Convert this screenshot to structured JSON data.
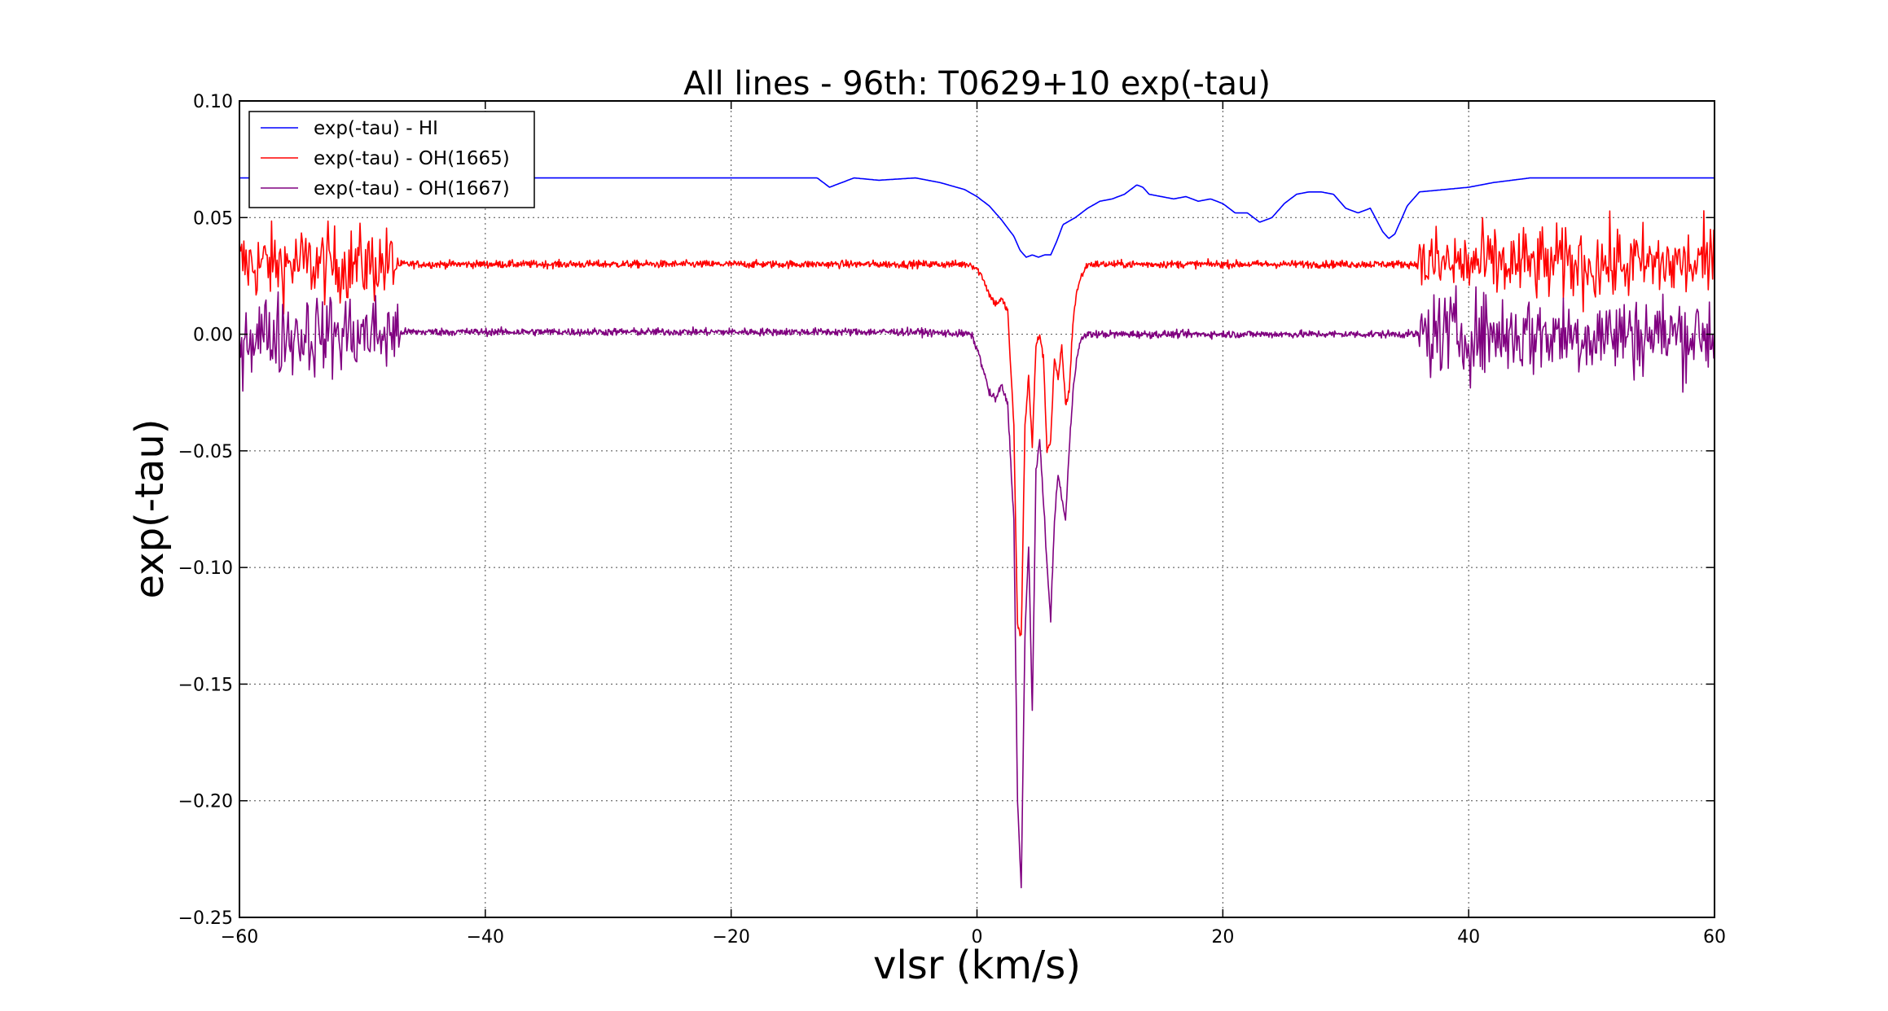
{
  "chart_data": {
    "type": "line",
    "title": "All lines - 96th: T0629+10  exp(-tau)",
    "xlabel": "vlsr (km/s)",
    "ylabel": "exp(-tau)",
    "xlim": [
      -60,
      60
    ],
    "ylim": [
      -0.25,
      0.1
    ],
    "grid": true,
    "legend_position": "top-left",
    "xticks": [
      -60,
      -40,
      -20,
      0,
      20,
      40,
      60
    ],
    "xtick_labels": [
      "−60",
      "−40",
      "−20",
      "0",
      "20",
      "40",
      "60"
    ],
    "yticks": [
      0.1,
      0.05,
      0.0,
      -0.05,
      -0.1,
      -0.15,
      -0.2,
      -0.25
    ],
    "ytick_labels": [
      "0.10",
      "0.05",
      "0.00",
      "−0.05",
      "−0.10",
      "−0.15",
      "−0.20",
      "−0.25"
    ],
    "series": [
      {
        "name": "exp(-tau) - HI",
        "color": "#0000ff",
        "noise_regions": [],
        "x": [
          -60,
          -14,
          -13,
          -12,
          -11,
          -10,
          -8,
          -5,
          -3,
          -1,
          0,
          1,
          2,
          3,
          3.5,
          4,
          4.5,
          5,
          5.5,
          6,
          6.5,
          7,
          8,
          9,
          10,
          11,
          12,
          13,
          13.5,
          14,
          15,
          16,
          17,
          18,
          19,
          20,
          21,
          22,
          23,
          24,
          25,
          26,
          27,
          28,
          29,
          30,
          31,
          32,
          33,
          33.5,
          34,
          35,
          36,
          38,
          40,
          42,
          45,
          50,
          60
        ],
        "y": [
          0.067,
          0.067,
          0.067,
          0.063,
          0.065,
          0.067,
          0.066,
          0.067,
          0.065,
          0.062,
          0.059,
          0.055,
          0.049,
          0.042,
          0.036,
          0.033,
          0.034,
          0.033,
          0.034,
          0.034,
          0.04,
          0.047,
          0.05,
          0.054,
          0.057,
          0.058,
          0.06,
          0.064,
          0.063,
          0.06,
          0.059,
          0.058,
          0.059,
          0.057,
          0.058,
          0.056,
          0.052,
          0.052,
          0.048,
          0.05,
          0.056,
          0.06,
          0.061,
          0.061,
          0.06,
          0.054,
          0.052,
          0.054,
          0.044,
          0.041,
          0.043,
          0.055,
          0.061,
          0.062,
          0.063,
          0.065,
          0.067,
          0.067,
          0.067
        ]
      },
      {
        "name": "exp(-tau) - OH(1665)",
        "color": "#ff0000",
        "noise_regions": [
          [
            -60,
            -47,
            0.03,
            0.018
          ],
          [
            36,
            60,
            0.03,
            0.018
          ]
        ],
        "x": [
          -46.9,
          -20,
          -5,
          -0.5,
          0,
          0.5,
          1,
          1.5,
          2,
          2.5,
          3,
          3.3,
          3.6,
          3.9,
          4.2,
          4.5,
          4.8,
          5.1,
          5.4,
          5.7,
          6.0,
          6.3,
          6.6,
          6.9,
          7.2,
          7.5,
          7.8,
          8.1,
          8.5,
          9,
          10,
          20,
          35.9
        ],
        "y": [
          0.03,
          0.03,
          0.03,
          0.03,
          0.028,
          0.024,
          0.017,
          0.013,
          0.015,
          0.01,
          -0.04,
          -0.125,
          -0.13,
          -0.04,
          -0.018,
          -0.048,
          -0.005,
          0.0,
          -0.01,
          -0.05,
          -0.045,
          -0.01,
          -0.02,
          -0.005,
          -0.03,
          -0.025,
          0.005,
          0.018,
          0.025,
          0.03,
          0.03,
          0.03,
          0.03
        ]
      },
      {
        "name": "exp(-tau) - OH(1667)",
        "color": "#800080",
        "noise_regions": [
          [
            -60,
            -47,
            0.0,
            0.02
          ],
          [
            36,
            60,
            0.0,
            0.02
          ]
        ],
        "x": [
          -46.9,
          -20,
          -5,
          -0.5,
          0,
          0.5,
          1,
          1.5,
          2,
          2.5,
          3,
          3.3,
          3.6,
          3.9,
          4.2,
          4.5,
          4.8,
          5.1,
          5.4,
          5.7,
          6.0,
          6.3,
          6.6,
          6.9,
          7.2,
          7.5,
          7.8,
          8.1,
          8.5,
          9,
          10,
          20,
          35.9
        ],
        "y": [
          0.001,
          0.001,
          0.001,
          0.0,
          -0.006,
          -0.015,
          -0.025,
          -0.028,
          -0.022,
          -0.03,
          -0.08,
          -0.2,
          -0.238,
          -0.13,
          -0.09,
          -0.162,
          -0.06,
          -0.045,
          -0.07,
          -0.1,
          -0.122,
          -0.08,
          -0.06,
          -0.07,
          -0.08,
          -0.05,
          -0.025,
          -0.01,
          -0.002,
          0.0,
          0.0,
          0.0,
          0.0
        ]
      }
    ]
  }
}
